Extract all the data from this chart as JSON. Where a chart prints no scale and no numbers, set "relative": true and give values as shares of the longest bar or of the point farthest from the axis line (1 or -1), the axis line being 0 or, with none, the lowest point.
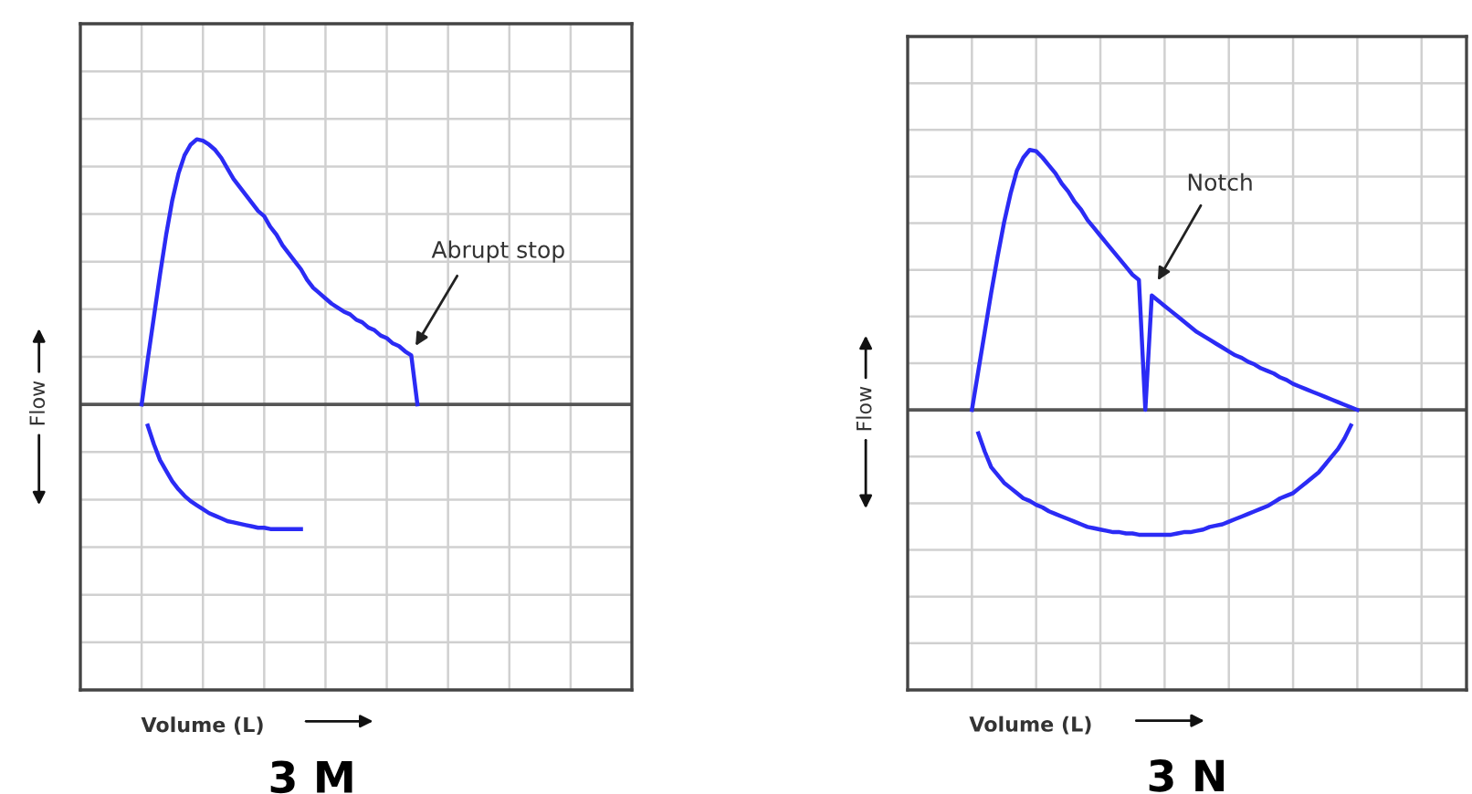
{
  "chart_data": [
    {
      "type": "line",
      "title": "3 M",
      "xlabel": "Volume (L)",
      "ylabel": "Flow",
      "relative": true,
      "grid": true,
      "marker": "none",
      "line_style": "solid",
      "annotations": [
        "Abrupt stop"
      ],
      "categories": [
        null,
        null,
        null,
        null,
        null,
        null,
        null,
        null,
        null,
        null,
        null,
        null,
        null,
        null,
        null,
        null,
        null,
        null,
        null,
        null,
        null,
        null,
        null,
        null,
        null,
        null,
        null,
        null,
        null,
        null,
        null,
        null,
        null,
        null,
        null,
        null,
        null,
        null,
        null,
        null,
        null,
        null,
        null,
        null,
        null,
        null
      ],
      "series": [
        {
          "color": "#2b2bf5",
          "values": [
            0,
            0.17,
            0.33,
            0.49,
            0.64,
            0.77,
            0.87,
            0.94,
            0.98,
            1,
            0.995,
            0.98,
            0.96,
            0.93,
            0.89,
            0.85,
            0.82,
            0.79,
            0.76,
            0.73,
            0.71,
            0.67,
            0.64,
            0.6,
            0.57,
            0.54,
            0.51,
            0.47,
            0.44,
            0.42,
            0.4,
            0.38,
            0.365,
            0.35,
            0.34,
            0.32,
            0.31,
            0.29,
            0.28,
            0.26,
            0.25,
            0.23,
            0.22,
            0.2,
            0.185,
            0
          ]
        },
        {
          "color": "#2b2bf5",
          "values": [
            null,
            -0.08,
            -0.15,
            -0.21,
            -0.25,
            -0.29,
            -0.32,
            -0.345,
            -0.365,
            -0.38,
            -0.395,
            -0.41,
            -0.42,
            -0.43,
            -0.44,
            -0.445,
            -0.45,
            -0.455,
            -0.46,
            -0.465,
            -0.465,
            -0.47,
            -0.47,
            -0.47,
            -0.47,
            -0.47,
            -0.47,
            null,
            null,
            null,
            null,
            null,
            null,
            null,
            null,
            null,
            null,
            null,
            null,
            null,
            null,
            null,
            null,
            null,
            null,
            null
          ]
        }
      ]
    },
    {
      "type": "line",
      "title": "3 N",
      "xlabel": "Volume (L)",
      "ylabel": "Flow",
      "relative": true,
      "grid": true,
      "marker": "none",
      "line_style": "solid",
      "annotations": [
        "Notch"
      ],
      "categories": [
        null,
        null,
        null,
        null,
        null,
        null,
        null,
        null,
        null,
        null,
        null,
        null,
        null,
        null,
        null,
        null,
        null,
        null,
        null,
        null,
        null,
        null,
        null,
        null,
        null,
        null,
        null,
        null,
        null,
        null,
        null,
        null,
        null,
        null,
        null,
        null,
        null,
        null,
        null,
        null,
        null,
        null,
        null,
        null,
        null,
        null,
        null,
        null,
        null,
        null,
        null,
        null,
        null,
        null,
        null,
        null,
        null,
        null,
        null,
        null,
        null
      ],
      "series": [
        {
          "color": "#2b2bf5",
          "values": [
            0,
            0.15,
            0.3,
            0.45,
            0.59,
            0.72,
            0.83,
            0.92,
            0.97,
            1,
            0.995,
            0.97,
            0.94,
            0.91,
            0.87,
            0.84,
            0.8,
            0.77,
            0.73,
            0.7,
            0.67,
            0.64,
            0.61,
            0.58,
            0.55,
            0.52,
            0.5,
            0,
            0.44,
            0.42,
            0.4,
            0.38,
            0.36,
            0.34,
            0.32,
            0.3,
            0.285,
            0.27,
            0.255,
            0.24,
            0.225,
            0.21,
            0.2,
            0.185,
            0.175,
            0.16,
            0.15,
            0.14,
            0.125,
            0.115,
            0.1,
            0.09,
            0.08,
            0.07,
            0.06,
            0.05,
            0.04,
            0.03,
            0.02,
            0.01,
            0
          ]
        },
        {
          "color": "#2b2bf5",
          "values": [
            null,
            -0.09,
            -0.16,
            -0.22,
            -0.25,
            -0.28,
            -0.3,
            -0.32,
            -0.34,
            -0.35,
            -0.365,
            -0.375,
            -0.39,
            -0.4,
            -0.41,
            -0.42,
            -0.43,
            -0.44,
            -0.45,
            -0.455,
            -0.46,
            -0.465,
            -0.47,
            -0.47,
            -0.475,
            -0.475,
            -0.48,
            -0.48,
            -0.48,
            -0.48,
            -0.48,
            -0.48,
            -0.475,
            -0.47,
            -0.47,
            -0.465,
            -0.46,
            -0.45,
            -0.445,
            -0.44,
            -0.43,
            -0.42,
            -0.41,
            -0.4,
            -0.39,
            -0.38,
            -0.37,
            -0.355,
            -0.34,
            -0.33,
            -0.32,
            -0.3,
            -0.28,
            -0.26,
            -0.24,
            -0.21,
            -0.18,
            -0.15,
            -0.11,
            -0.06,
            null
          ]
        }
      ]
    }
  ]
}
